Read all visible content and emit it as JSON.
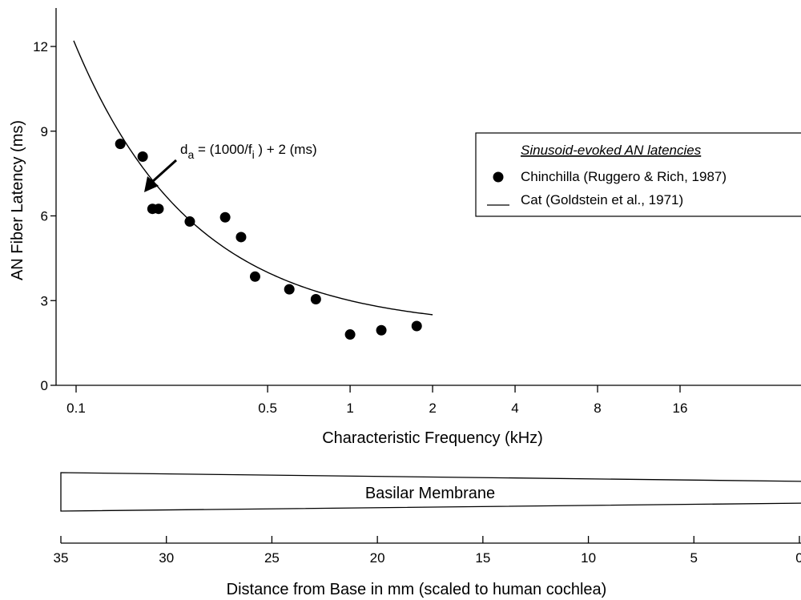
{
  "chart_data": {
    "type": "scatter",
    "xlabel": "Characteristic Frequency (kHz)",
    "ylabel": "AN Fiber Latency (ms)",
    "x_scale": "log",
    "xlim": [
      0.09,
      22
    ],
    "ylim": [
      0,
      12.8
    ],
    "x_ticks": [
      {
        "value": 0.1,
        "label": "0.1"
      },
      {
        "value": 0.5,
        "label": "0.5"
      },
      {
        "value": 1,
        "label": "1"
      },
      {
        "value": 2,
        "label": "2"
      },
      {
        "value": 4,
        "label": "4"
      },
      {
        "value": 8,
        "label": "8"
      },
      {
        "value": 16,
        "label": "16"
      }
    ],
    "y_ticks": [
      {
        "value": 0,
        "label": "0"
      },
      {
        "value": 3,
        "label": "3"
      },
      {
        "value": 6,
        "label": "6"
      },
      {
        "value": 9,
        "label": "9"
      },
      {
        "value": 12,
        "label": "12"
      }
    ],
    "legend": {
      "title": "Sinusoid-evoked AN latencies",
      "position": "right"
    },
    "series": [
      {
        "name": "Chinchilla (Ruggero & Rich, 1987)",
        "marker": "filled-circle",
        "x": [
          0.145,
          0.175,
          0.19,
          0.2,
          0.26,
          0.35,
          0.4,
          0.45,
          0.6,
          0.75,
          1.0,
          1.3,
          1.75
        ],
        "y": [
          8.55,
          8.1,
          6.25,
          6.25,
          5.8,
          5.95,
          5.25,
          3.85,
          3.4,
          3.05,
          1.8,
          1.95,
          2.1
        ]
      },
      {
        "name": "Cat (Goldstein et al., 1971)",
        "marker": "line",
        "formula": "(1000/f) + 2",
        "x_range": [
          0.098,
          2.0
        ]
      }
    ],
    "annotation": {
      "text_main": "d",
      "text_sub_a": "a",
      "text_mid": " = (1000/f",
      "text_sub_i": "i",
      "text_end": " ) + 2 (ms)"
    }
  },
  "basilar": {
    "label": "Basilar Membrane",
    "axis_title": "Distance from Base in mm (scaled to human cochlea)",
    "ticks": [
      "35",
      "30",
      "25",
      "20",
      "15",
      "10",
      "5",
      "0"
    ]
  }
}
